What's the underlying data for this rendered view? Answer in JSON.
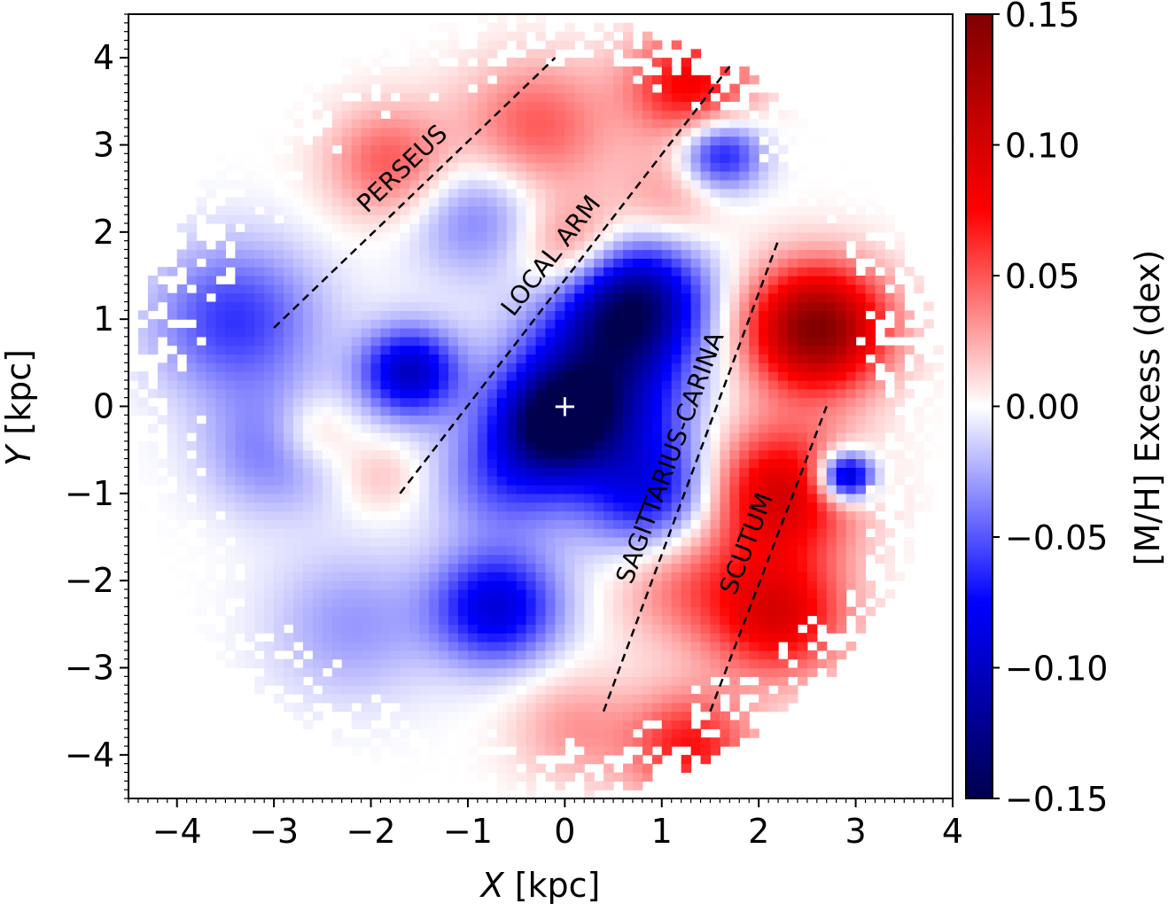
{
  "chart_data": {
    "type": "heatmap",
    "xlabel_var": "X",
    "xlabel_unit": "[kpc]",
    "ylabel_var": "Y",
    "ylabel_unit": "[kpc]",
    "xlim": [
      -4.5,
      4.0
    ],
    "ylim": [
      -4.5,
      4.5
    ],
    "x_ticks": [
      -4,
      -3,
      -2,
      -1,
      0,
      1,
      2,
      3,
      4
    ],
    "x_tick_labels": [
      "−4",
      "−3",
      "−2",
      "−1",
      "0",
      "1",
      "2",
      "3",
      "4"
    ],
    "y_ticks": [
      -4,
      -3,
      -2,
      -1,
      0,
      1,
      2,
      3,
      4
    ],
    "y_tick_labels": [
      "−4",
      "−3",
      "−2",
      "−1",
      "0",
      "1",
      "2",
      "3",
      "4"
    ],
    "colorbar": {
      "label": "[M/H] Excess (dex)",
      "vmin": -0.15,
      "vmax": 0.15,
      "ticks": [
        -0.15,
        -0.1,
        -0.05,
        0.0,
        0.05,
        0.1,
        0.15
      ],
      "tick_labels": [
        "−0.15",
        "−0.10",
        "−0.05",
        "0.00",
        "0.05",
        "0.10",
        "0.15"
      ],
      "colormap": "seismic",
      "colors": {
        "low": "#00004c",
        "mid_low": "#0000ff",
        "mid": "#ffffff",
        "mid_high": "#ff0000",
        "high": "#800000"
      }
    },
    "sun_marker": {
      "x": 0,
      "y": 0,
      "symbol": "+",
      "color": "#ffffff"
    },
    "arms": [
      {
        "name": "PERSEUS",
        "x": [
          -3.0,
          -0.1
        ],
        "y": [
          0.9,
          4.0
        ]
      },
      {
        "name": "LOCAL ARM",
        "x": [
          -1.7,
          1.7
        ],
        "y": [
          -1.0,
          3.9
        ]
      },
      {
        "name": "SAGITTARIUS-CARINA",
        "x": [
          0.4,
          2.2
        ],
        "y": [
          -3.5,
          1.9
        ]
      },
      {
        "name": "SCUTUM",
        "x": [
          1.5,
          2.7
        ],
        "y": [
          -3.5,
          0.0
        ]
      }
    ],
    "field_blobs": [
      {
        "x": -0.7,
        "y": -2.3,
        "v": -0.09,
        "s": 0.45
      },
      {
        "x": -1.6,
        "y": 0.4,
        "v": -0.1,
        "s": 0.35
      },
      {
        "x": 0.7,
        "y": 1.2,
        "v": -0.13,
        "s": 0.5
      },
      {
        "x": 0.3,
        "y": 0.2,
        "v": -0.11,
        "s": 0.6
      },
      {
        "x": -0.1,
        "y": -0.2,
        "v": -0.1,
        "s": 0.4
      },
      {
        "x": 0.9,
        "y": -1.0,
        "v": -0.08,
        "s": 0.5
      },
      {
        "x": -0.6,
        "y": -0.8,
        "v": -0.05,
        "s": 0.5
      },
      {
        "x": -3.4,
        "y": 1.0,
        "v": -0.06,
        "s": 0.6
      },
      {
        "x": -3.0,
        "y": -0.5,
        "v": -0.04,
        "s": 0.5
      },
      {
        "x": -2.2,
        "y": -2.5,
        "v": -0.03,
        "s": 0.6
      },
      {
        "x": -0.9,
        "y": 2.2,
        "v": -0.04,
        "s": 0.5
      },
      {
        "x": -1.8,
        "y": 2.8,
        "v": 0.05,
        "s": 0.45
      },
      {
        "x": -0.3,
        "y": 3.2,
        "v": 0.05,
        "s": 0.55
      },
      {
        "x": 1.3,
        "y": 3.7,
        "v": 0.08,
        "s": 0.45
      },
      {
        "x": 0.1,
        "y": 1.8,
        "v": 0.05,
        "s": 0.4
      },
      {
        "x": 1.1,
        "y": 2.4,
        "v": 0.03,
        "s": 0.4
      },
      {
        "x": 2.6,
        "y": 0.9,
        "v": 0.15,
        "s": 0.5
      },
      {
        "x": 2.2,
        "y": -1.0,
        "v": 0.1,
        "s": 0.55
      },
      {
        "x": 2.2,
        "y": -2.4,
        "v": 0.09,
        "s": 0.5
      },
      {
        "x": 1.2,
        "y": -2.0,
        "v": 0.04,
        "s": 0.5
      },
      {
        "x": 1.3,
        "y": -3.9,
        "v": 0.07,
        "s": 0.45
      },
      {
        "x": 0.1,
        "y": -3.7,
        "v": 0.03,
        "s": 0.45
      },
      {
        "x": -2.6,
        "y": -0.3,
        "v": 0.03,
        "s": 0.3
      },
      {
        "x": -1.9,
        "y": -0.8,
        "v": 0.02,
        "s": 0.3
      },
      {
        "x": 2.9,
        "y": -0.8,
        "v": -0.13,
        "s": 0.2
      },
      {
        "x": 1.6,
        "y": 2.9,
        "v": -0.08,
        "s": 0.3
      }
    ],
    "valid_region": {
      "center": [
        -0.3,
        0.0
      ],
      "radius_x": 4.2,
      "radius_y": 4.5
    }
  }
}
